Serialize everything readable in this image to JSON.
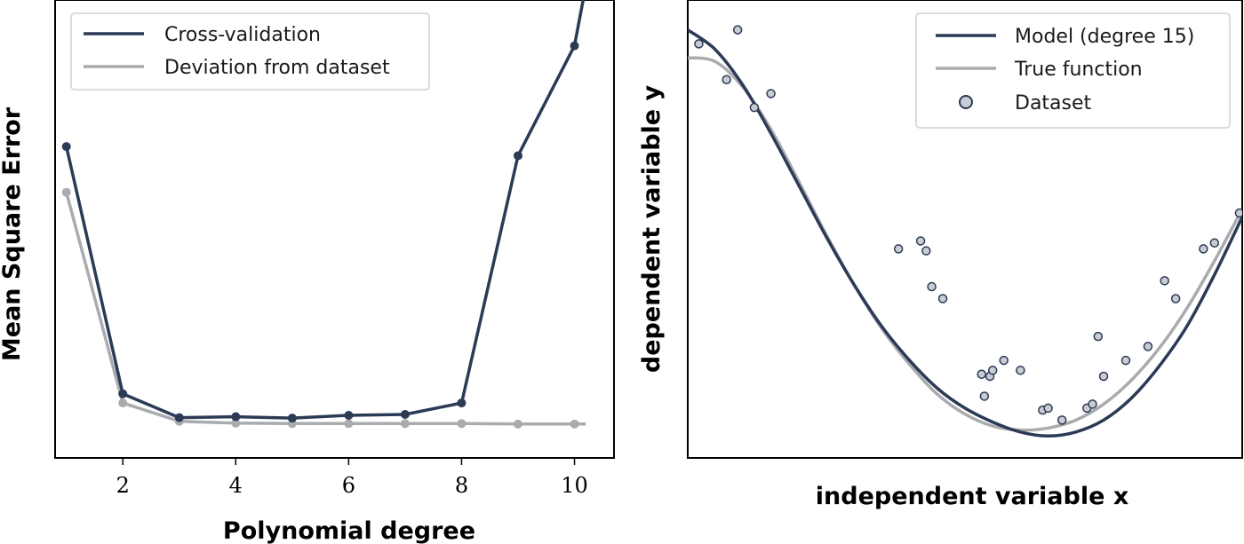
{
  "colors": {
    "model": "#2b3a55",
    "truth": "#a9abae",
    "point_fill": "#c9ccd3",
    "point_edge": "#2b3a55"
  },
  "chart_data": [
    {
      "type": "line",
      "xlabel": "Polynomial degree",
      "ylabel": "Mean Square Error",
      "xlim": [
        0.8,
        10.7
      ],
      "ylim": [
        0,
        1
      ],
      "xticks": [
        2,
        4,
        6,
        8,
        10
      ],
      "legend_position": "top-left",
      "y_tick_labels": false,
      "x": [
        1,
        2,
        3,
        4,
        5,
        6,
        7,
        8,
        9,
        10,
        10.2
      ],
      "series": [
        {
          "name": "Cross-validation",
          "color": "#2b3a55",
          "markers": true,
          "values": [
            0.68,
            0.14,
            0.088,
            0.09,
            0.087,
            0.093,
            0.095,
            0.12,
            0.66,
            0.9,
            1.03
          ]
        },
        {
          "name": "Deviation from dataset",
          "color": "#a9abae",
          "markers": true,
          "values": [
            0.58,
            0.12,
            0.08,
            0.076,
            0.075,
            0.075,
            0.075,
            0.075,
            0.074,
            0.074,
            0.074
          ]
        }
      ]
    },
    {
      "type": "scatter",
      "xlabel": "independent variable x",
      "ylabel": "dependent variable y",
      "xlim": [
        0,
        1
      ],
      "ylim": [
        -1.15,
        1.15
      ],
      "legend_position": "top-right",
      "y_tick_labels": false,
      "x_tick_labels": false,
      "series": [
        {
          "name": "Model (degree 15)",
          "kind": "curve",
          "color": "#2b3a55",
          "x": [
            0,
            0.05,
            0.1,
            0.15,
            0.2,
            0.25,
            0.3,
            0.35,
            0.4,
            0.45,
            0.5,
            0.55,
            0.6,
            0.65,
            0.7,
            0.75,
            0.8,
            0.85,
            0.9,
            0.95,
            1.0
          ],
          "y": [
            1.0,
            0.9,
            0.72,
            0.48,
            0.22,
            -0.04,
            -0.28,
            -0.49,
            -0.66,
            -0.8,
            -0.9,
            -0.97,
            -1.02,
            -1.04,
            -1.02,
            -0.96,
            -0.85,
            -0.69,
            -0.49,
            -0.23,
            0.06
          ]
        },
        {
          "name": "True function",
          "kind": "curve",
          "color": "#a9abae",
          "x": [
            0,
            0.05,
            0.1,
            0.15,
            0.2,
            0.25,
            0.3,
            0.35,
            0.4,
            0.45,
            0.5,
            0.55,
            0.6,
            0.65,
            0.7,
            0.75,
            0.8,
            0.85,
            0.9,
            0.95,
            1.0
          ],
          "y": [
            0.86,
            0.84,
            0.71,
            0.5,
            0.24,
            -0.03,
            -0.28,
            -0.5,
            -0.68,
            -0.83,
            -0.93,
            -0.99,
            -1.01,
            -1.0,
            -0.96,
            -0.88,
            -0.76,
            -0.6,
            -0.4,
            -0.16,
            0.1
          ]
        },
        {
          "name": "Dataset",
          "kind": "points",
          "color": "#c9ccd3",
          "points": [
            [
              0.02,
              0.93
            ],
            [
              0.07,
              0.75
            ],
            [
              0.09,
              1.0
            ],
            [
              0.12,
              0.61
            ],
            [
              0.15,
              0.68
            ],
            [
              0.38,
              -0.1
            ],
            [
              0.42,
              -0.06
            ],
            [
              0.43,
              -0.11
            ],
            [
              0.44,
              -0.29
            ],
            [
              0.46,
              -0.35
            ],
            [
              0.53,
              -0.73
            ],
            [
              0.535,
              -0.84
            ],
            [
              0.545,
              -0.74
            ],
            [
              0.55,
              -0.71
            ],
            [
              0.57,
              -0.66
            ],
            [
              0.6,
              -0.71
            ],
            [
              0.64,
              -0.91
            ],
            [
              0.65,
              -0.9
            ],
            [
              0.675,
              -0.96
            ],
            [
              0.72,
              -0.9
            ],
            [
              0.73,
              -0.88
            ],
            [
              0.74,
              -0.54
            ],
            [
              0.75,
              -0.74
            ],
            [
              0.79,
              -0.66
            ],
            [
              0.83,
              -0.59
            ],
            [
              0.86,
              -0.26
            ],
            [
              0.88,
              -0.35
            ],
            [
              0.93,
              -0.1
            ],
            [
              0.95,
              -0.07
            ],
            [
              0.995,
              0.08
            ]
          ]
        }
      ]
    }
  ]
}
